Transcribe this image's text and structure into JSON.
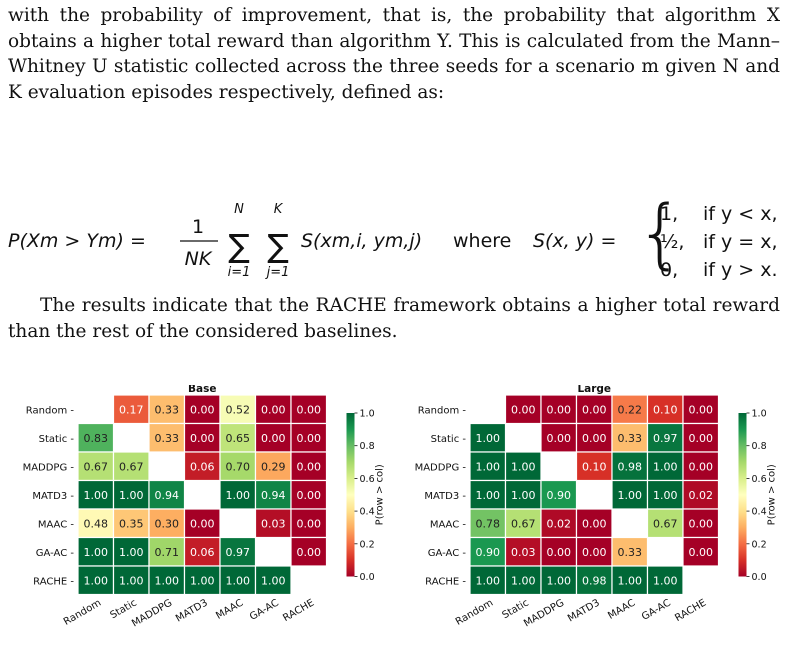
{
  "text": {
    "para1": "with the probability of improvement, that is, the probability that algorithm X obtains a higher total reward than algorithm Y. This is calculated from the Mann–Whitney U statistic collected across the three seeds for a scenario m given N and K evaluation episodes respectively, defined as:",
    "para2": "The results indicate that the RACHE framework obtains a higher total reward than the rest of the considered baselines."
  },
  "equation": {
    "lhs": "P(Xm > Ym) =",
    "frac_num": "1",
    "frac_den": "NK",
    "sum1_top": "N",
    "sum1_bot": "i=1",
    "sum2_top": "K",
    "sum2_bot": "j=1",
    "term": "S(xm,i, ym,j)",
    "where": "where",
    "s_def": "S(x, y) =",
    "cases": [
      {
        "value": "1,",
        "cond": "if y < x,"
      },
      {
        "value": "½,",
        "cond": "if y = x,"
      },
      {
        "value": "0,",
        "cond": "if y > x."
      }
    ]
  },
  "chart_data": [
    {
      "type": "heatmap",
      "title": "Base",
      "row_labels": [
        "Random",
        "Static",
        "MADDPG",
        "MATD3",
        "MAAC",
        "GA-AC",
        "RACHE"
      ],
      "col_labels": [
        "Random",
        "Static",
        "MADDPG",
        "MATD3",
        "MAAC",
        "GA-AC",
        "RACHE"
      ],
      "values": [
        [
          null,
          0.17,
          0.33,
          0.0,
          0.52,
          0.0,
          0.0
        ],
        [
          0.83,
          null,
          0.33,
          0.0,
          0.65,
          0.0,
          0.0
        ],
        [
          0.67,
          0.67,
          null,
          0.06,
          0.7,
          0.29,
          0.0
        ],
        [
          1.0,
          1.0,
          0.94,
          null,
          1.0,
          0.94,
          0.0
        ],
        [
          0.48,
          0.35,
          0.3,
          0.0,
          null,
          0.03,
          0.0
        ],
        [
          1.0,
          1.0,
          0.71,
          0.06,
          0.97,
          null,
          0.0
        ],
        [
          1.0,
          1.0,
          1.0,
          1.0,
          1.0,
          1.0,
          null
        ]
      ],
      "colorbar_label": "P(row > col)",
      "colorbar_ticks": [
        "1.0",
        "0.8",
        "0.6",
        "0.4",
        "0.2",
        "0.0"
      ],
      "vmin": 0,
      "vmax": 1,
      "colormap": "RdYlGn"
    },
    {
      "type": "heatmap",
      "title": "Large",
      "row_labels": [
        "Random",
        "Static",
        "MADDPG",
        "MATD3",
        "MAAC",
        "GA-AC",
        "RACHE"
      ],
      "col_labels": [
        "Random",
        "Static",
        "MADDPG",
        "MATD3",
        "MAAC",
        "GA-AC",
        "RACHE"
      ],
      "values": [
        [
          null,
          0.0,
          0.0,
          0.0,
          0.22,
          0.1,
          0.0
        ],
        [
          1.0,
          null,
          0.0,
          0.0,
          0.33,
          0.97,
          0.0
        ],
        [
          1.0,
          1.0,
          null,
          0.1,
          0.98,
          1.0,
          0.0
        ],
        [
          1.0,
          1.0,
          0.9,
          null,
          1.0,
          1.0,
          0.02
        ],
        [
          0.78,
          0.67,
          0.02,
          0.0,
          null,
          0.67,
          0.0
        ],
        [
          0.9,
          0.03,
          0.0,
          0.0,
          0.33,
          null,
          0.0
        ],
        [
          1.0,
          1.0,
          1.0,
          0.98,
          1.0,
          1.0,
          null
        ]
      ],
      "colorbar_label": "P(row > col)",
      "colorbar_ticks": [
        "1.0",
        "0.8",
        "0.6",
        "0.4",
        "0.2",
        "0.0"
      ],
      "vmin": 0,
      "vmax": 1,
      "colormap": "RdYlGn"
    }
  ]
}
